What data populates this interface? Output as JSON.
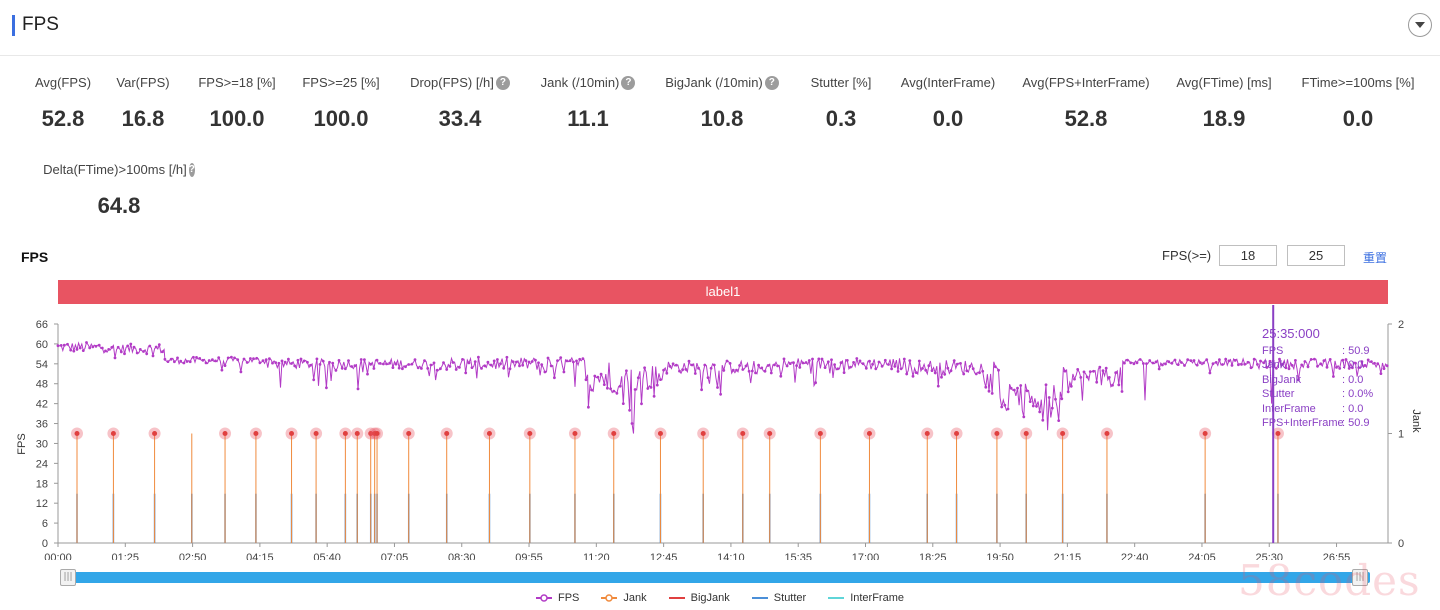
{
  "header": {
    "title": "FPS"
  },
  "metrics": [
    {
      "label": "Avg(FPS)",
      "value": "52.8",
      "help": false
    },
    {
      "label": "Var(FPS)",
      "value": "16.8",
      "help": false
    },
    {
      "label": "FPS>=18 [%]",
      "value": "100.0",
      "help": false
    },
    {
      "label": "FPS>=25 [%]",
      "value": "100.0",
      "help": false
    },
    {
      "label": "Drop(FPS) [/h]",
      "value": "33.4",
      "help": true
    },
    {
      "label": "Jank (/10min)",
      "value": "11.1",
      "help": true
    },
    {
      "label": "BigJank (/10min)",
      "value": "10.8",
      "help": true
    },
    {
      "label": "Stutter [%]",
      "value": "0.3",
      "help": false
    },
    {
      "label": "Avg(InterFrame)",
      "value": "0.0",
      "help": false
    },
    {
      "label": "Avg(FPS+InterFrame)",
      "value": "52.8",
      "help": false
    },
    {
      "label": "Avg(FTime) [ms]",
      "value": "18.9",
      "help": false
    },
    {
      "label": "FTime>=100ms [%]",
      "value": "0.0",
      "help": false
    },
    {
      "label": "Delta(FTime)>100ms [/h]",
      "value": "64.8",
      "help": true
    }
  ],
  "section": {
    "title": "FPS",
    "threshold_label": "FPS(>=)",
    "threshold_low": "18",
    "threshold_high": "25",
    "reset_label": "重置",
    "banner_label": "label1"
  },
  "tooltip": {
    "time": "25:35:000",
    "rows": [
      {
        "key": "FPS",
        "value": ": 50.9"
      },
      {
        "key": "Jank",
        "value": ": 0.0"
      },
      {
        "key": "BigJank",
        "value": ": 0.0"
      },
      {
        "key": "Stutter",
        "value": ": 0.0%"
      },
      {
        "key": "InterFrame",
        "value": ": 0.0"
      },
      {
        "key": "FPS+InterFrame",
        "value": ": 50.9"
      }
    ]
  },
  "slider": {
    "handle_glyph": "|||"
  },
  "watermark": "58codes",
  "colors": {
    "fps": "#b23bc6",
    "jank": "#f08a3c",
    "bigjank": "#e04040",
    "stutter": "#4b8fd8",
    "interframe": "#5fd5d8",
    "banner": "#e85462",
    "cursor": "#8a3fc4",
    "accent": "#3b6fe0"
  },
  "chart_data": {
    "type": "line",
    "title": "FPS",
    "ylabel": "FPS",
    "y2label": "Jank",
    "ylim": [
      0,
      66
    ],
    "y2lim": [
      0,
      2
    ],
    "yticks": [
      "0",
      "6",
      "12",
      "18",
      "24",
      "30",
      "36",
      "42",
      "48",
      "54",
      "60",
      "66"
    ],
    "y2ticks": [
      "0",
      "1",
      "2"
    ],
    "xlim_seconds": [
      0,
      1680
    ],
    "xticks": [
      "00:00",
      "01:25",
      "02:50",
      "04:15",
      "05:40",
      "07:05",
      "08:30",
      "09:55",
      "11:20",
      "12:45",
      "14:10",
      "15:35",
      "17:00",
      "18:25",
      "19:50",
      "21:15",
      "22:40",
      "24:05",
      "25:30",
      "26:55"
    ],
    "cursor_time": "25:35",
    "fps_segments": [
      {
        "start": "00:00",
        "end": "01:10",
        "mean": 59,
        "spread": 1.5,
        "dip_prob": 0.04,
        "dip_depth": 6
      },
      {
        "start": "01:10",
        "end": "02:15",
        "mean": 58.5,
        "spread": 1.5,
        "dip_prob": 0.05,
        "dip_depth": 6
      },
      {
        "start": "02:15",
        "end": "04:35",
        "mean": 55,
        "spread": 1.0,
        "dip_prob": 0.05,
        "dip_depth": 6
      },
      {
        "start": "04:35",
        "end": "07:55",
        "mean": 54,
        "spread": 1.5,
        "dip_prob": 0.1,
        "dip_depth": 7
      },
      {
        "start": "07:55",
        "end": "11:10",
        "mean": 54,
        "spread": 2.0,
        "dip_prob": 0.12,
        "dip_depth": 6
      },
      {
        "start": "11:10",
        "end": "12:05",
        "mean": 50,
        "spread": 5.0,
        "dip_prob": 0.2,
        "dip_depth": 8
      },
      {
        "start": "12:05",
        "end": "12:45",
        "mean": 50,
        "spread": 4.0,
        "dip_prob": 0.15,
        "dip_depth": 8
      },
      {
        "start": "12:45",
        "end": "15:05",
        "mean": 53,
        "spread": 2.0,
        "dip_prob": 0.14,
        "dip_depth": 7
      },
      {
        "start": "15:05",
        "end": "17:50",
        "mean": 54,
        "spread": 1.8,
        "dip_prob": 0.12,
        "dip_depth": 6
      },
      {
        "start": "17:50",
        "end": "19:50",
        "mean": 53,
        "spread": 2.2,
        "dip_prob": 0.14,
        "dip_depth": 7
      },
      {
        "start": "19:50",
        "end": "21:10",
        "mean": 44,
        "spread": 4.0,
        "dip_prob": 0.15,
        "dip_depth": 6
      },
      {
        "start": "21:10",
        "end": "22:25",
        "mean": 50,
        "spread": 3.0,
        "dip_prob": 0.15,
        "dip_depth": 6
      },
      {
        "start": "22:25",
        "end": "24:55",
        "mean": 54.5,
        "spread": 1.0,
        "dip_prob": 0.05,
        "dip_depth": 4
      },
      {
        "start": "24:55",
        "end": "28:00",
        "mean": 54,
        "spread": 1.5,
        "dip_prob": 0.06,
        "dip_depth": 5
      }
    ],
    "fps_dips": [
      {
        "time": "12:07",
        "value": 33
      },
      {
        "time": "12:05",
        "value": 36
      },
      {
        "time": "12:02",
        "value": 40
      },
      {
        "time": "20:50",
        "value": 34
      },
      {
        "time": "20:45",
        "value": 37
      },
      {
        "time": "20:20",
        "value": 38
      },
      {
        "time": "11:55",
        "value": 42
      },
      {
        "time": "22:53",
        "value": 43
      },
      {
        "time": "25:33",
        "value": 42
      }
    ],
    "jank_events": [
      "00:24",
      "01:10",
      "02:02",
      "02:49",
      "03:31",
      "04:10",
      "04:55",
      "05:26",
      "06:03",
      "06:18",
      "06:35",
      "06:40",
      "06:43",
      "07:23",
      "08:11",
      "09:05",
      "09:56",
      "10:53",
      "11:42",
      "12:41",
      "13:35",
      "14:25",
      "14:59",
      "16:03",
      "17:05",
      "18:18",
      "18:55",
      "19:46",
      "20:23",
      "21:09",
      "22:05",
      "24:09",
      "25:41"
    ],
    "jank_marker_skips": [
      "02:49"
    ],
    "jank_marker_value": 1,
    "stutter_value": 0.45,
    "legend": [
      "FPS",
      "Jank",
      "BigJank",
      "Stutter",
      "InterFrame"
    ]
  }
}
